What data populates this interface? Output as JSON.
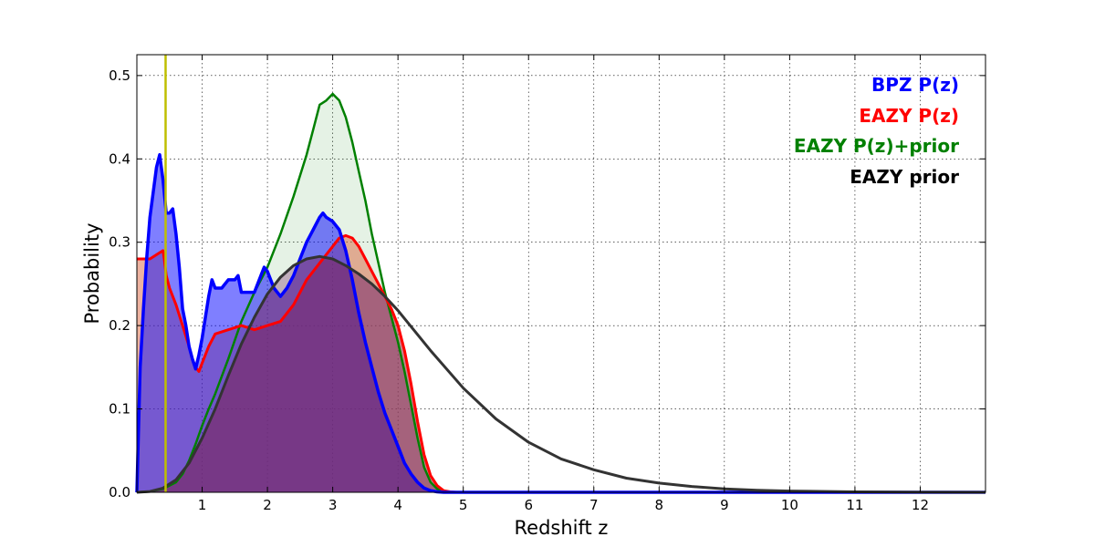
{
  "chart_data": {
    "type": "area",
    "title": "",
    "xlabel": "Redshift z",
    "ylabel": "Probability",
    "xlim": [
      0,
      13
    ],
    "ylim": [
      0,
      0.525
    ],
    "xticks": [
      1,
      2,
      3,
      4,
      5,
      6,
      7,
      8,
      9,
      10,
      11,
      12
    ],
    "yticks": [
      0.0,
      0.1,
      0.2,
      0.3,
      0.4,
      0.5
    ],
    "ytick_labels": [
      "0.0",
      "0.1",
      "0.2",
      "0.3",
      "0.4",
      "0.5"
    ],
    "grid": true,
    "legend_position": "top-right",
    "vline": {
      "x": 0.44,
      "color": "#bfbf00"
    },
    "legend": [
      {
        "label": "BPZ P(z)",
        "color": "#0000ff"
      },
      {
        "label": "EAZY P(z)",
        "color": "#ff0000"
      },
      {
        "label": "EAZY P(z)+prior",
        "color": "#008000"
      },
      {
        "label": "EAZY prior",
        "color": "#000000"
      }
    ],
    "series": [
      {
        "name": "BPZ P(z)",
        "color": "#0000ff",
        "fill": "#0000ff",
        "fill_opacity": 0.5,
        "line_width": 3.5,
        "x": [
          0,
          0.05,
          0.1,
          0.15,
          0.2,
          0.25,
          0.3,
          0.35,
          0.4,
          0.45,
          0.5,
          0.55,
          0.6,
          0.65,
          0.7,
          0.75,
          0.8,
          0.85,
          0.9,
          0.95,
          1.0,
          1.05,
          1.1,
          1.15,
          1.2,
          1.3,
          1.4,
          1.5,
          1.55,
          1.6,
          1.7,
          1.8,
          1.9,
          1.95,
          2.0,
          2.1,
          2.2,
          2.3,
          2.4,
          2.5,
          2.6,
          2.7,
          2.8,
          2.85,
          2.9,
          3.0,
          3.1,
          3.2,
          3.3,
          3.4,
          3.5,
          3.6,
          3.7,
          3.8,
          3.9,
          4.0,
          4.1,
          4.2,
          4.3,
          4.4,
          4.5,
          4.6,
          4.7,
          4.8,
          5.0,
          13.0
        ],
        "values": [
          0.0,
          0.15,
          0.22,
          0.28,
          0.33,
          0.36,
          0.39,
          0.405,
          0.375,
          0.335,
          0.335,
          0.34,
          0.31,
          0.27,
          0.22,
          0.2,
          0.175,
          0.16,
          0.148,
          0.165,
          0.185,
          0.21,
          0.235,
          0.255,
          0.245,
          0.245,
          0.255,
          0.255,
          0.26,
          0.24,
          0.24,
          0.24,
          0.26,
          0.27,
          0.265,
          0.245,
          0.235,
          0.245,
          0.26,
          0.28,
          0.3,
          0.315,
          0.33,
          0.335,
          0.33,
          0.325,
          0.315,
          0.29,
          0.255,
          0.215,
          0.18,
          0.15,
          0.12,
          0.095,
          0.075,
          0.055,
          0.035,
          0.022,
          0.012,
          0.005,
          0.002,
          0.0005,
          0.0,
          0.0,
          0.0,
          0.0
        ]
      },
      {
        "name": "EAZY P(z)",
        "color": "#ff0000",
        "fill": "#d7542c",
        "fill_opacity": 0.45,
        "line_width": 3,
        "x": [
          0,
          0.1,
          0.2,
          0.3,
          0.4,
          0.42,
          0.45,
          0.5,
          0.6,
          0.7,
          0.8,
          0.85,
          0.9,
          0.95,
          1.0,
          1.1,
          1.2,
          1.4,
          1.6,
          1.8,
          2.0,
          2.2,
          2.4,
          2.6,
          2.8,
          3.0,
          3.1,
          3.2,
          3.3,
          3.4,
          3.5,
          3.6,
          3.7,
          3.8,
          3.9,
          4.0,
          4.1,
          4.2,
          4.3,
          4.4,
          4.5,
          4.6,
          4.7,
          4.8,
          4.9,
          5.0,
          13.0
        ],
        "values": [
          0.28,
          0.28,
          0.28,
          0.285,
          0.29,
          0.28,
          0.26,
          0.245,
          0.225,
          0.2,
          0.175,
          0.16,
          0.15,
          0.145,
          0.155,
          0.175,
          0.19,
          0.195,
          0.2,
          0.195,
          0.2,
          0.205,
          0.225,
          0.255,
          0.275,
          0.295,
          0.305,
          0.308,
          0.305,
          0.295,
          0.28,
          0.265,
          0.25,
          0.235,
          0.22,
          0.2,
          0.17,
          0.13,
          0.085,
          0.045,
          0.02,
          0.008,
          0.002,
          0.0005,
          0.0,
          0.0,
          0.0
        ]
      },
      {
        "name": "EAZY P(z)+prior",
        "color": "#008000",
        "fill": "#008000",
        "fill_opacity": 0.1,
        "line_width": 2.5,
        "x": [
          0,
          0.2,
          0.4,
          0.6,
          0.7,
          0.8,
          0.9,
          1.0,
          1.1,
          1.2,
          1.4,
          1.6,
          1.8,
          2.0,
          2.2,
          2.4,
          2.6,
          2.7,
          2.8,
          2.9,
          3.0,
          3.1,
          3.2,
          3.3,
          3.4,
          3.5,
          3.6,
          3.7,
          3.8,
          3.9,
          4.0,
          4.1,
          4.2,
          4.3,
          4.4,
          4.5,
          4.6,
          4.7,
          4.8,
          4.9,
          5.0,
          13.0
        ],
        "values": [
          0.0,
          0.001,
          0.004,
          0.012,
          0.022,
          0.038,
          0.058,
          0.08,
          0.1,
          0.118,
          0.16,
          0.205,
          0.24,
          0.27,
          0.31,
          0.355,
          0.405,
          0.435,
          0.465,
          0.47,
          0.478,
          0.47,
          0.45,
          0.42,
          0.385,
          0.35,
          0.31,
          0.275,
          0.24,
          0.21,
          0.18,
          0.145,
          0.105,
          0.065,
          0.03,
          0.012,
          0.004,
          0.001,
          0.0,
          0.0,
          0.0,
          0.0
        ]
      },
      {
        "name": "EAZY prior",
        "color": "#333333",
        "fill": "#7b3f6e",
        "fill_opacity": 0.0,
        "line_width": 3,
        "x": [
          0,
          0.2,
          0.4,
          0.6,
          0.8,
          1.0,
          1.2,
          1.4,
          1.6,
          1.8,
          2.0,
          2.2,
          2.4,
          2.6,
          2.8,
          3.0,
          3.2,
          3.4,
          3.6,
          3.8,
          4.0,
          4.5,
          5.0,
          5.5,
          6.0,
          6.5,
          7.0,
          7.5,
          8.0,
          8.5,
          9.0,
          9.5,
          10.0,
          11.0,
          12.0,
          13.0
        ],
        "values": [
          0.0,
          0.001,
          0.005,
          0.015,
          0.035,
          0.065,
          0.1,
          0.14,
          0.178,
          0.21,
          0.238,
          0.258,
          0.272,
          0.28,
          0.283,
          0.28,
          0.272,
          0.262,
          0.25,
          0.235,
          0.218,
          0.17,
          0.125,
          0.088,
          0.06,
          0.04,
          0.027,
          0.017,
          0.011,
          0.007,
          0.004,
          0.0025,
          0.0015,
          0.0005,
          0.0001,
          0.0
        ]
      }
    ]
  }
}
